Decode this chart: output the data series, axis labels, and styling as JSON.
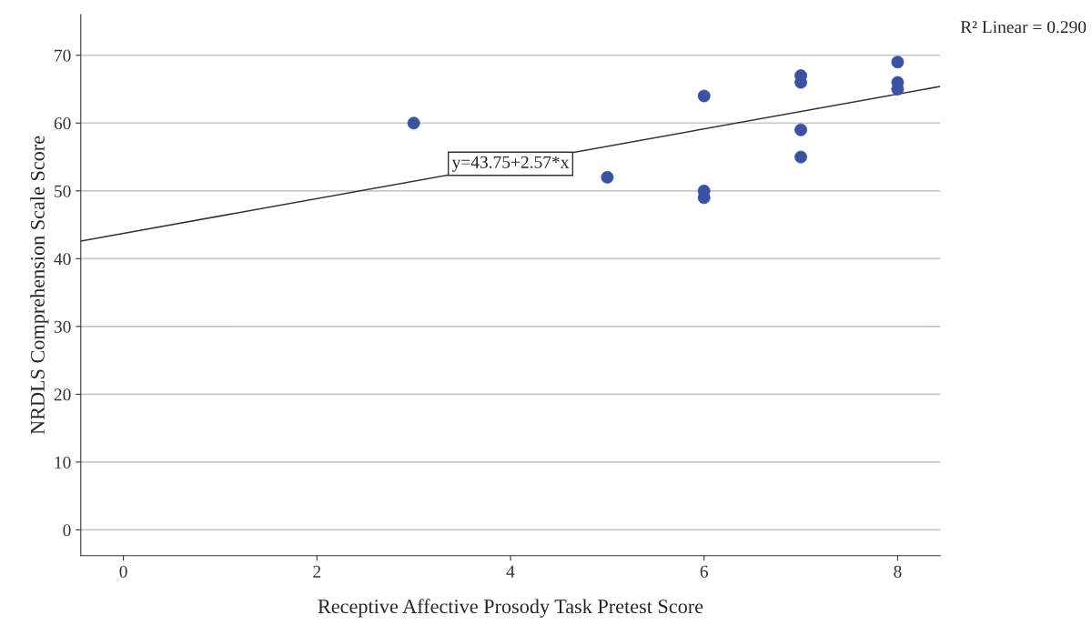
{
  "chart_data": {
    "type": "scatter",
    "xlabel": "Receptive Affective Prosody Task Pretest Score",
    "ylabel": "NRDLS Comprehension Scale Score",
    "series": [
      {
        "color": "#3a52a0",
        "marker": "circle",
        "x": [
          3,
          5,
          6,
          6,
          6,
          7,
          7,
          7,
          7,
          8,
          8,
          8
        ],
        "values": [
          60,
          52,
          64,
          50,
          49,
          67,
          66,
          59,
          55,
          69,
          66,
          65
        ]
      },
      {
        "type": "line",
        "color": "#333333",
        "x": [
          -0.44,
          8.44
        ],
        "values": [
          42.6,
          65.4
        ],
        "marker": "none"
      }
    ],
    "annotations": [
      {
        "text": "y=43.75+2.57*x",
        "x": 4,
        "y": 54
      },
      "R² Linear = 0.290"
    ],
    "xlim": [
      -0.44,
      8.44
    ],
    "ylim": [
      -3.8,
      76
    ],
    "xticks": [
      0,
      2,
      4,
      6,
      8
    ],
    "yticks": [
      0,
      10,
      20,
      30,
      40,
      50,
      60,
      70
    ],
    "grid": "y",
    "legend": false
  }
}
